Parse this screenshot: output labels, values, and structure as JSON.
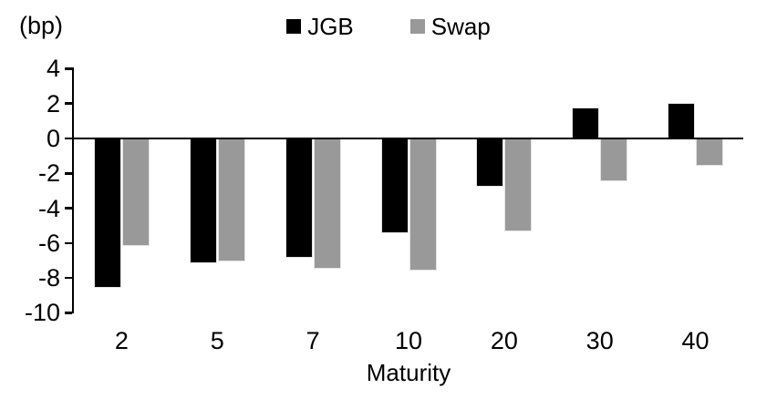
{
  "chart_data": {
    "type": "bar",
    "title": "",
    "unit_label": "(bp)",
    "xlabel": "Maturity",
    "ylabel": "",
    "categories": [
      "2",
      "5",
      "7",
      "10",
      "20",
      "30",
      "40"
    ],
    "series": [
      {
        "name": "JGB",
        "color": "#000000",
        "values": [
          -8.5,
          -7.1,
          -6.8,
          -5.4,
          -2.7,
          1.7,
          2.0
        ]
      },
      {
        "name": "Swap",
        "color": "#999999",
        "values": [
          -6.1,
          -7.0,
          -7.4,
          -7.5,
          -5.3,
          -2.4,
          -1.5
        ]
      }
    ],
    "yticks": [
      4,
      2,
      0,
      -2,
      -4,
      -6,
      -8,
      -10
    ],
    "ylim": [
      -10,
      4
    ],
    "legend_position": "top-center",
    "grid": false,
    "axis_color": "#000000",
    "background_color": "#ffffff"
  }
}
